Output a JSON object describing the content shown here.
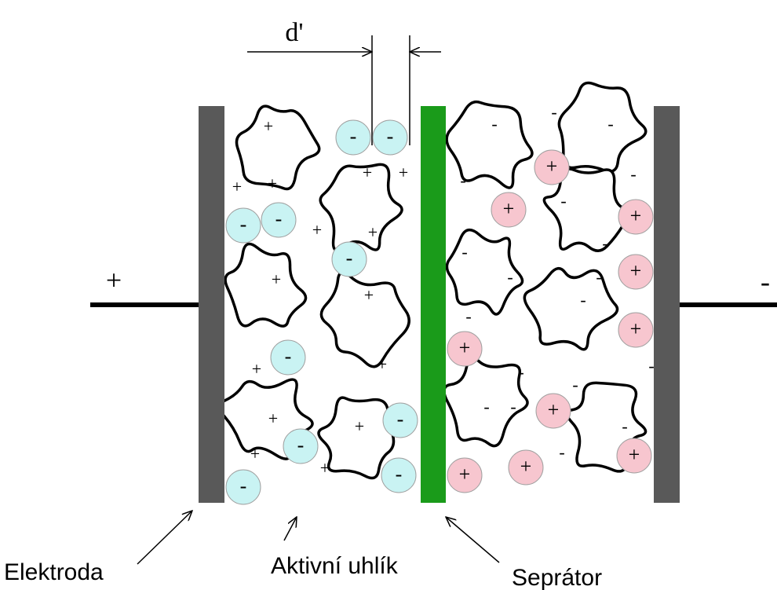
{
  "terminals": {
    "positive": "+",
    "negative": "-"
  },
  "distance_label": "d'",
  "ion_signs": {
    "anion": "-",
    "cation": "+"
  },
  "surface_charges": {
    "left": "+",
    "right": "-"
  },
  "labels": {
    "electrode": "Elektroda",
    "active_carbon": "Aktivní uhlík",
    "separator": "Seprátor"
  }
}
